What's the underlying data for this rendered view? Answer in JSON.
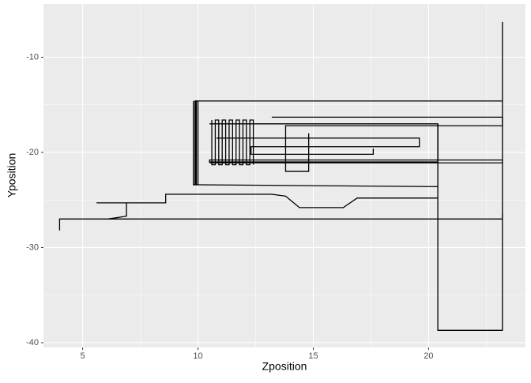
{
  "chart_data": {
    "type": "path",
    "xlabel": "Zposition",
    "ylabel": "Yposition",
    "xlim": [
      3.3,
      24.2
    ],
    "ylim": [
      -40.5,
      -4.4
    ],
    "xticks": [
      5,
      10,
      15,
      20
    ],
    "yticks": [
      -10,
      -20,
      -30,
      -40
    ],
    "xminorticks": [
      7.5,
      12.5,
      17.5,
      22.5
    ],
    "yminorticks": [
      -15,
      -25,
      -35
    ],
    "grid": true,
    "series": [
      {
        "color": "#000000",
        "x": [
          4,
          4,
          23.2,
          23.2
        ],
        "y": [
          -28.2,
          -27,
          -27,
          -26.4
        ]
      },
      {
        "color": "#000000",
        "x": [
          20.4,
          20.4,
          23.2,
          23.2
        ],
        "y": [
          -17,
          -38.7,
          -38.7,
          -6.3
        ]
      },
      {
        "color": "#000000",
        "x": [
          20.4,
          9.9,
          9.9,
          23.2
        ],
        "y": [
          -23.6,
          -23.4,
          -14.6,
          -14.6
        ]
      },
      {
        "color": "#000000",
        "x": [
          9.8,
          9.8,
          9.87,
          9.87,
          9.93,
          9.93,
          10,
          10
        ],
        "y": [
          -14.6,
          -23.4,
          -23.4,
          -14.6,
          -14.6,
          -23.4,
          -23.4,
          -14.6
        ]
      },
      {
        "color": "#000000",
        "x": [
          5.6,
          8.6,
          8.6,
          13.2,
          13.8,
          14.4,
          16.3,
          16.9,
          20.4
        ],
        "y": [
          -25.3,
          -25.3,
          -24.4,
          -24.4,
          -24.6,
          -25.8,
          -25.8,
          -24.8,
          -24.8
        ]
      },
      {
        "color": "#000000",
        "x": [
          10.6,
          10.6,
          10.75,
          10.75,
          10.9,
          10.9,
          11.05,
          11.05,
          11.2,
          11.2,
          11.35,
          11.35,
          11.5,
          11.5,
          11.65,
          11.65,
          11.8,
          11.8,
          11.95,
          11.95,
          12.1,
          12.1,
          12.25,
          12.25,
          12.4,
          12.4
        ],
        "y": [
          -16.6,
          -21.3,
          -21.3,
          -16.6,
          -16.6,
          -21.3,
          -21.3,
          -16.6,
          -16.6,
          -21.3,
          -21.3,
          -16.6,
          -16.6,
          -21.3,
          -21.3,
          -16.6,
          -16.6,
          -21.3,
          -21.3,
          -16.6,
          -16.6,
          -21.3,
          -21.3,
          -16.6,
          -16.6,
          -21.3
        ]
      },
      {
        "color": "#000000",
        "x": [
          10.5,
          20.4,
          20.4,
          10.5,
          10.5,
          23.2,
          23.2,
          10.5
        ],
        "y": [
          -17,
          -17,
          -21,
          -21,
          -20.8,
          -20.8,
          -21.1,
          -21.1
        ]
      },
      {
        "color": "#000000",
        "x": [
          13.2,
          23.2,
          23.2,
          13.8,
          13.8,
          14.8,
          14.8
        ],
        "y": [
          -16.3,
          -16.3,
          -17.2,
          -17.2,
          -22,
          -22,
          -18
        ]
      },
      {
        "color": "#000000",
        "x": [
          10.8,
          19.6,
          19.6,
          12.3,
          12.3,
          17.6,
          17.6
        ],
        "y": [
          -18.5,
          -18.5,
          -19.4,
          -19.4,
          -20.2,
          -20.2,
          -19.6
        ]
      },
      {
        "color": "#000000",
        "x": [
          6.1,
          6.9,
          6.9,
          6.9
        ],
        "y": [
          -27,
          -26.7,
          -26.7,
          -25.3
        ]
      }
    ]
  }
}
